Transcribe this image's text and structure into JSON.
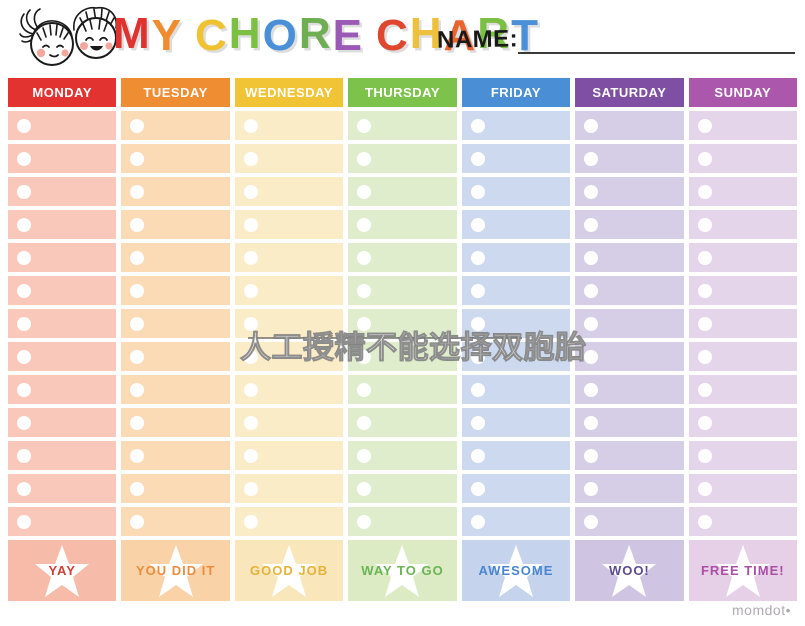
{
  "page": {
    "name_label": "NAME:",
    "watermark_text": "人工授精不能选择双胞胎",
    "brand": "momdot•",
    "illustration": "two-kids-faces"
  },
  "title": {
    "letters": [
      {
        "ch": "M",
        "color": "#e0322f"
      },
      {
        "ch": "Y",
        "color": "#f08c2e"
      },
      {
        "ch": " "
      },
      {
        "ch": "C",
        "color": "#f0c232"
      },
      {
        "ch": "H",
        "color": "#7bc043"
      },
      {
        "ch": "O",
        "color": "#4a90d9"
      },
      {
        "ch": "R",
        "color": "#6fae53"
      },
      {
        "ch": "E",
        "color": "#9a59b5"
      },
      {
        "ch": " "
      },
      {
        "ch": "C",
        "color": "#e0472f"
      },
      {
        "ch": "H",
        "color": "#eec13d"
      },
      {
        "ch": "A",
        "color": "#e8632d"
      },
      {
        "ch": "R",
        "color": "#7bc043"
      },
      {
        "ch": "T",
        "color": "#4a90d9"
      }
    ]
  },
  "table": {
    "rows_per_column": 13,
    "days": [
      {
        "label": "MONDAY",
        "header_bg": "#e23330",
        "cell_bg": "#f9c8ba",
        "footer_bg": "#f7bbaa",
        "footer_label": "YAY",
        "footer_text_color": "#cf3f38"
      },
      {
        "label": "TUESDAY",
        "header_bg": "#ef8d33",
        "cell_bg": "#fbdab6",
        "footer_bg": "#fad2a8",
        "footer_label": "YOU DID IT",
        "footer_text_color": "#ee8c3e"
      },
      {
        "label": "WEDNESDAY",
        "header_bg": "#f0c434",
        "cell_bg": "#faecc6",
        "footer_bg": "#f9e6ba",
        "footer_label": "GOOD JOB",
        "footer_text_color": "#e5b33a"
      },
      {
        "label": "THURSDAY",
        "header_bg": "#7dc24a",
        "cell_bg": "#dfedcd",
        "footer_bg": "#dcebc4",
        "footer_label": "WAY TO GO",
        "footer_text_color": "#69b453"
      },
      {
        "label": "FRIDAY",
        "header_bg": "#4a8fd5",
        "cell_bg": "#cdd9ee",
        "footer_bg": "#c5d4ec",
        "footer_label": "AWESOME",
        "footer_text_color": "#4a86cf"
      },
      {
        "label": "SATURDAY",
        "header_bg": "#7e4fa2",
        "cell_bg": "#d6cee7",
        "footer_bg": "#cfc5e2",
        "footer_label": "WOO!",
        "footer_text_color": "#5c4d8e"
      },
      {
        "label": "SUNDAY",
        "header_bg": "#ab57ab",
        "cell_bg": "#e5d5ea",
        "footer_bg": "#e6d0e8",
        "footer_label": "FREE TIME!",
        "footer_text_color": "#ab4fa5"
      }
    ]
  }
}
